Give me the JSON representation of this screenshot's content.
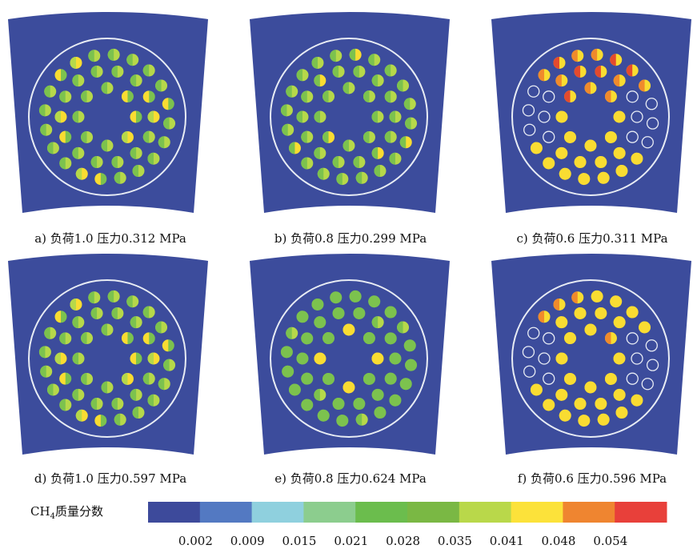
{
  "panels": [
    {
      "caption": "a) 负荷1.0 压力0.312 MPa",
      "pattern": "a"
    },
    {
      "caption": "b) 负荷0.8 压力0.299 MPa",
      "pattern": "b"
    },
    {
      "caption": "c) 负荷0.6 压力0.311 MPa",
      "pattern": "c"
    },
    {
      "caption": "d) 负荷1.0 压力0.597 MPa",
      "pattern": "d"
    },
    {
      "caption": "e) 负荷0.8 压力0.624 MPa",
      "pattern": "e"
    },
    {
      "caption": "f) 负荷0.6 压力0.596 MPa",
      "pattern": "f"
    }
  ],
  "legend": {
    "title_main": "CH",
    "title_sub": "4",
    "title_rest": "质量分数",
    "ticks": [
      "0.002",
      "0.009",
      "0.015",
      "0.021",
      "0.028",
      "0.035",
      "0.041",
      "0.048",
      "0.054"
    ],
    "colors": [
      "#3d4a9b",
      "#5379c2",
      "#8fd0de",
      "#8ccd8e",
      "#6bbd4d",
      "#7ab844",
      "#b9d84a",
      "#fce23a",
      "#ef8530",
      "#e8403a"
    ]
  },
  "colors": {
    "background_blue": "#3c4c9c",
    "ring": "#e8ecf4",
    "green": "#7cc24e",
    "lime": "#b6d84a",
    "yellow": "#f9dc32",
    "orange": "#f08a2c",
    "red": "#e34a2e"
  }
}
